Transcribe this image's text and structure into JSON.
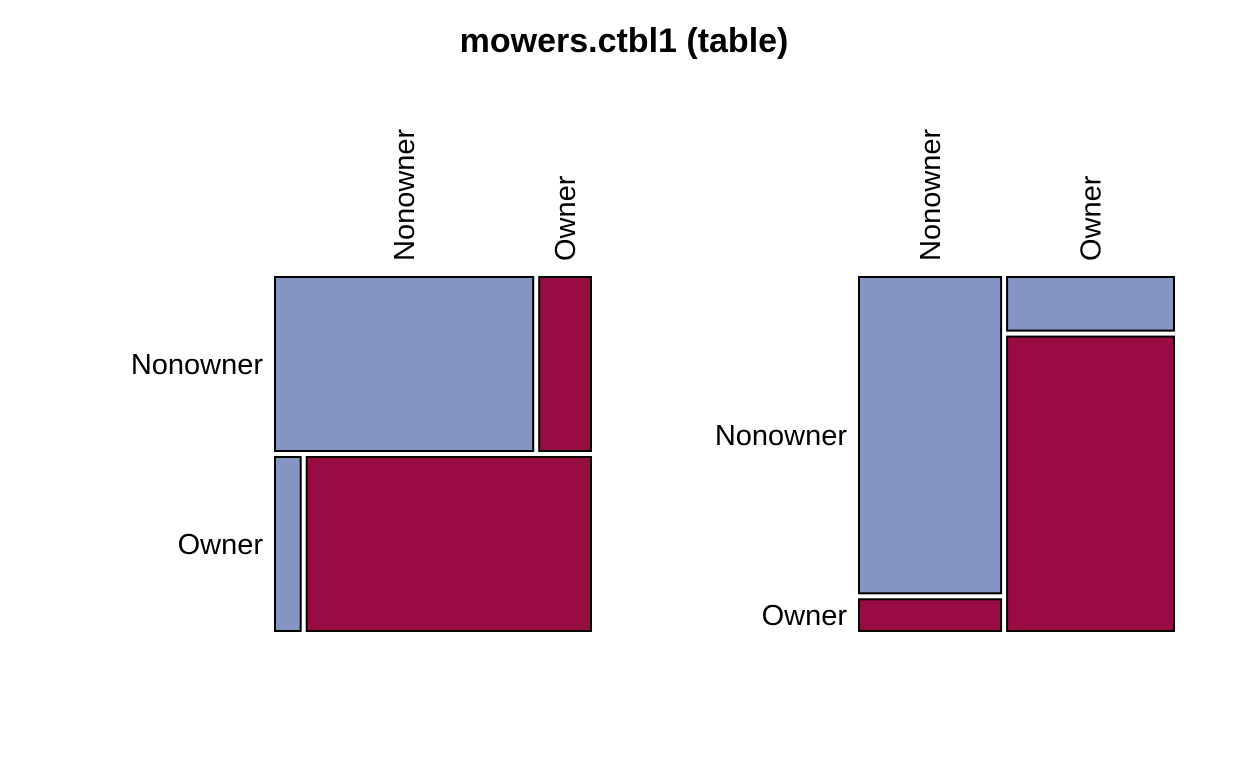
{
  "chart_data": {
    "type": "mosaic",
    "title": "mowers.ctbl1 (table)",
    "colors": {
      "Nonowner": "#8396c3",
      "Owner": "#990b43",
      "border": "#000000"
    },
    "panels": [
      {
        "row_categories": [
          "Nonowner",
          "Owner"
        ],
        "col_categories": [
          "Nonowner",
          "Owner"
        ],
        "row_shares": [
          0.5,
          0.5
        ],
        "within_row_col_shares": [
          [
            0.833,
            0.167
          ],
          [
            0.083,
            0.917
          ]
        ]
      },
      {
        "row_categories": [
          "Nonowner",
          "Owner"
        ],
        "col_categories": [
          "Nonowner",
          "Owner"
        ],
        "col_shares": [
          0.46,
          0.54
        ],
        "within_col_row_shares": [
          [
            0.909,
            0.091
          ],
          [
            0.154,
            0.846
          ]
        ]
      }
    ]
  }
}
